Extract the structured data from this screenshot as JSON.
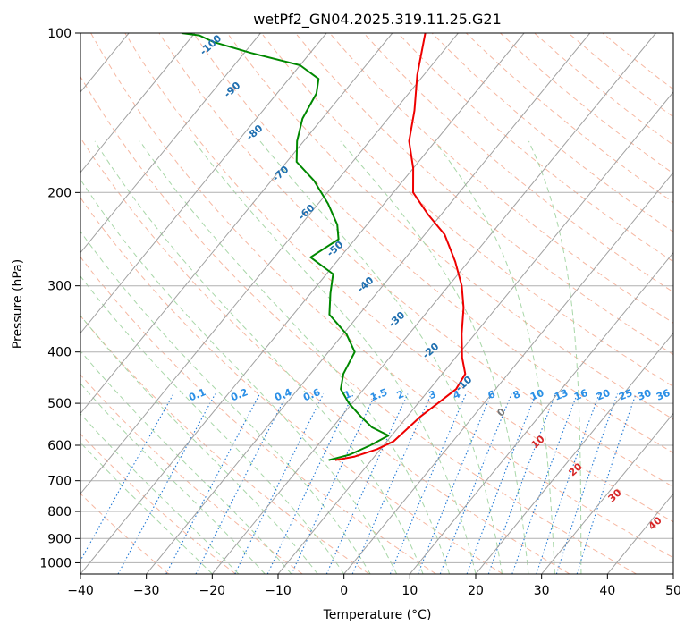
{
  "chart_data": {
    "type": "line",
    "title": "wetPf2_GN04.2025.319.11.25.G21",
    "xlabel": "Temperature (°C)",
    "ylabel": "Pressure (hPa)",
    "xlim": [
      -40,
      50
    ],
    "ylim": [
      1050,
      100
    ],
    "y_scale": "log",
    "x_ticks": [
      -40,
      -30,
      -20,
      -10,
      0,
      10,
      20,
      30,
      40,
      50
    ],
    "y_ticks": [
      1000,
      900,
      800,
      700,
      600,
      500,
      400,
      300,
      200,
      100
    ],
    "grid": true,
    "series": [
      {
        "role": "temperature",
        "color": "#ee0000",
        "points": [
          {
            "p": 640,
            "t": -15.5
          },
          {
            "p": 630,
            "t": -13.0
          },
          {
            "p": 610,
            "t": -10.5
          },
          {
            "p": 590,
            "t": -9.0
          },
          {
            "p": 560,
            "t": -8.5
          },
          {
            "p": 530,
            "t": -8.0
          },
          {
            "p": 500,
            "t": -7.0
          },
          {
            "p": 470,
            "t": -6.0
          },
          {
            "p": 440,
            "t": -6.5
          },
          {
            "p": 410,
            "t": -9.0
          },
          {
            "p": 370,
            "t": -12.0
          },
          {
            "p": 330,
            "t": -15.0
          },
          {
            "p": 300,
            "t": -18.0
          },
          {
            "p": 270,
            "t": -22.0
          },
          {
            "p": 240,
            "t": -27.0
          },
          {
            "p": 220,
            "t": -32.0
          },
          {
            "p": 200,
            "t": -37.0
          },
          {
            "p": 180,
            "t": -40.0
          },
          {
            "p": 160,
            "t": -44.0
          },
          {
            "p": 140,
            "t": -47.0
          },
          {
            "p": 120,
            "t": -51.0
          },
          {
            "p": 100,
            "t": -55.0
          }
        ]
      },
      {
        "role": "dewpoint",
        "color": "#008800",
        "points": [
          {
            "p": 640,
            "t": -16.5
          },
          {
            "p": 625,
            "t": -14.0
          },
          {
            "p": 600,
            "t": -12.0
          },
          {
            "p": 575,
            "t": -10.5
          },
          {
            "p": 555,
            "t": -14.0
          },
          {
            "p": 530,
            "t": -17.0
          },
          {
            "p": 500,
            "t": -20.5
          },
          {
            "p": 470,
            "t": -23.5
          },
          {
            "p": 440,
            "t": -25.0
          },
          {
            "p": 400,
            "t": -26.0
          },
          {
            "p": 370,
            "t": -29.5
          },
          {
            "p": 340,
            "t": -34.5
          },
          {
            "p": 310,
            "t": -37.0
          },
          {
            "p": 285,
            "t": -39.0
          },
          {
            "p": 265,
            "t": -44.5
          },
          {
            "p": 245,
            "t": -42.5
          },
          {
            "p": 230,
            "t": -44.5
          },
          {
            "p": 210,
            "t": -48.5
          },
          {
            "p": 190,
            "t": -53.5
          },
          {
            "p": 175,
            "t": -58.5
          },
          {
            "p": 160,
            "t": -61.0
          },
          {
            "p": 145,
            "t": -63.0
          },
          {
            "p": 130,
            "t": -64.0
          },
          {
            "p": 122,
            "t": -65.5
          },
          {
            "p": 115,
            "t": -70.0
          },
          {
            "p": 109,
            "t": -79.0
          },
          {
            "p": 104,
            "t": -86.0
          },
          {
            "p": 101,
            "t": -89.0
          },
          {
            "p": 100,
            "t": -92.0
          }
        ]
      }
    ],
    "isotherm_labels_dry": [
      "0",
      "10",
      "20",
      "30",
      "40"
    ],
    "isotherm_labels_moist": [
      "-100",
      "-90",
      "-80",
      "-70",
      "-60",
      "-50",
      "-40",
      "-30",
      "-20",
      "-10"
    ],
    "mixing_ratio_labels": [
      "0.1",
      "0.2",
      "0.4",
      "0.6",
      "1",
      "1.5",
      "2",
      "3",
      "4",
      "6",
      "8",
      "10",
      "13",
      "16",
      "20",
      "25",
      "30",
      "36"
    ],
    "colors": {
      "dry_adiabat": "#f4a58a",
      "moist_adiabat": "#9ed39e",
      "mixing_ratio": "#1f77d4",
      "isotherm": "#888888",
      "moist_label": "#1f6fb0",
      "dry_label": "#d62728",
      "zero_label": "#777777"
    }
  }
}
